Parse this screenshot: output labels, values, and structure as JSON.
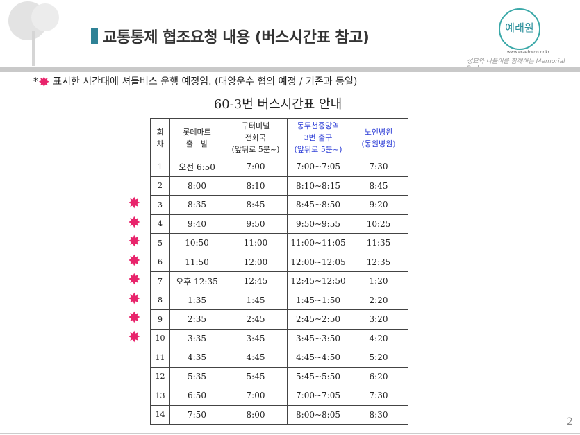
{
  "header": {
    "title": "교통통제 협조요청 내용 (버스시간표 참고)",
    "logo_text": "예래원",
    "logo_url": "www.eraehwon.or.kr",
    "logo_tagline": "성묘와 나들이를 함께하는 Memorial Park"
  },
  "note": {
    "prefix": "*",
    "text": "표시한 시간대에 셔틀버스 운행 예정임. (대양운수 협의 예정 / 기존과 동일)",
    "star_color": "#e8246b"
  },
  "schedule": {
    "title": "60-3번 버스시간표 안내",
    "columns": [
      "회\n차",
      "롯데마트\n출　발",
      "구터미널\n전화국\n(앞뒤로 5분~)",
      "동두천중앙역\n3번 출구\n(앞뒤로 5분~)",
      "노인병원\n(동원병원)"
    ],
    "rows": [
      [
        "1",
        "오전 6:50",
        "7:00",
        "7:00~7:05",
        "7:30",
        false
      ],
      [
        "2",
        "8:00",
        "8:10",
        "8:10~8:15",
        "8:45",
        false
      ],
      [
        "3",
        "8:35",
        "8:45",
        "8:45~8:50",
        "9:20",
        true
      ],
      [
        "4",
        "9:40",
        "9:50",
        "9:50~9:55",
        "10:25",
        true
      ],
      [
        "5",
        "10:50",
        "11:00",
        "11:00~11:05",
        "11:35",
        true
      ],
      [
        "6",
        "11:50",
        "12:00",
        "12:00~12:05",
        "12:35",
        true
      ],
      [
        "7",
        "오후 12:35",
        "12:45",
        "12:45~12:50",
        "1:20",
        true
      ],
      [
        "8",
        "1:35",
        "1:45",
        "1:45~1:50",
        "2:20",
        true
      ],
      [
        "9",
        "2:35",
        "2:45",
        "2:45~2:50",
        "3:20",
        true
      ],
      [
        "10",
        "3:35",
        "3:45",
        "3:45~3:50",
        "4:20",
        true
      ],
      [
        "11",
        "4:35",
        "4:45",
        "4:45~4:50",
        "5:20",
        false
      ],
      [
        "12",
        "5:35",
        "5:45",
        "5:45~5:50",
        "6:20",
        false
      ],
      [
        "13",
        "6:50",
        "7:00",
        "7:00~7:05",
        "7:30",
        false
      ],
      [
        "14",
        "7:50",
        "8:00",
        "8:00~8:05",
        "8:30",
        false
      ]
    ]
  },
  "page_number": "2"
}
